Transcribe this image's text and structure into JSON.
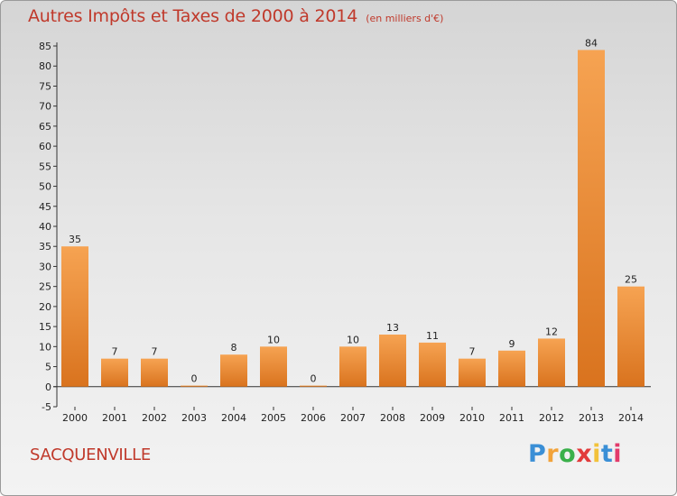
{
  "chart_data": {
    "type": "bar",
    "title": "Autres Impôts et Taxes de 2000 à 2014",
    "subtitle": "(en milliers d'€)",
    "categories": [
      "2000",
      "2001",
      "2002",
      "2003",
      "2004",
      "2005",
      "2006",
      "2007",
      "2008",
      "2009",
      "2010",
      "2011",
      "2012",
      "2013",
      "2014"
    ],
    "values": [
      35,
      7,
      7,
      0,
      8,
      10,
      0,
      10,
      13,
      11,
      7,
      9,
      12,
      84,
      25
    ],
    "ylim": [
      -5,
      85
    ],
    "yticks": [
      -5,
      0,
      5,
      10,
      15,
      20,
      25,
      30,
      35,
      40,
      45,
      50,
      55,
      60,
      65,
      70,
      75,
      80,
      85
    ],
    "grid": false,
    "bar_color": "#f0923a"
  },
  "commune": "SACQUENVILLE",
  "logo": {
    "letters": [
      "P",
      "r",
      "o",
      "x",
      "i",
      "t",
      "i"
    ],
    "colors": [
      "#3a8fd6",
      "#f2a33a",
      "#3ab04a",
      "#e23b3b",
      "#f2c23a",
      "#3a8fd6",
      "#e23b6b"
    ]
  }
}
